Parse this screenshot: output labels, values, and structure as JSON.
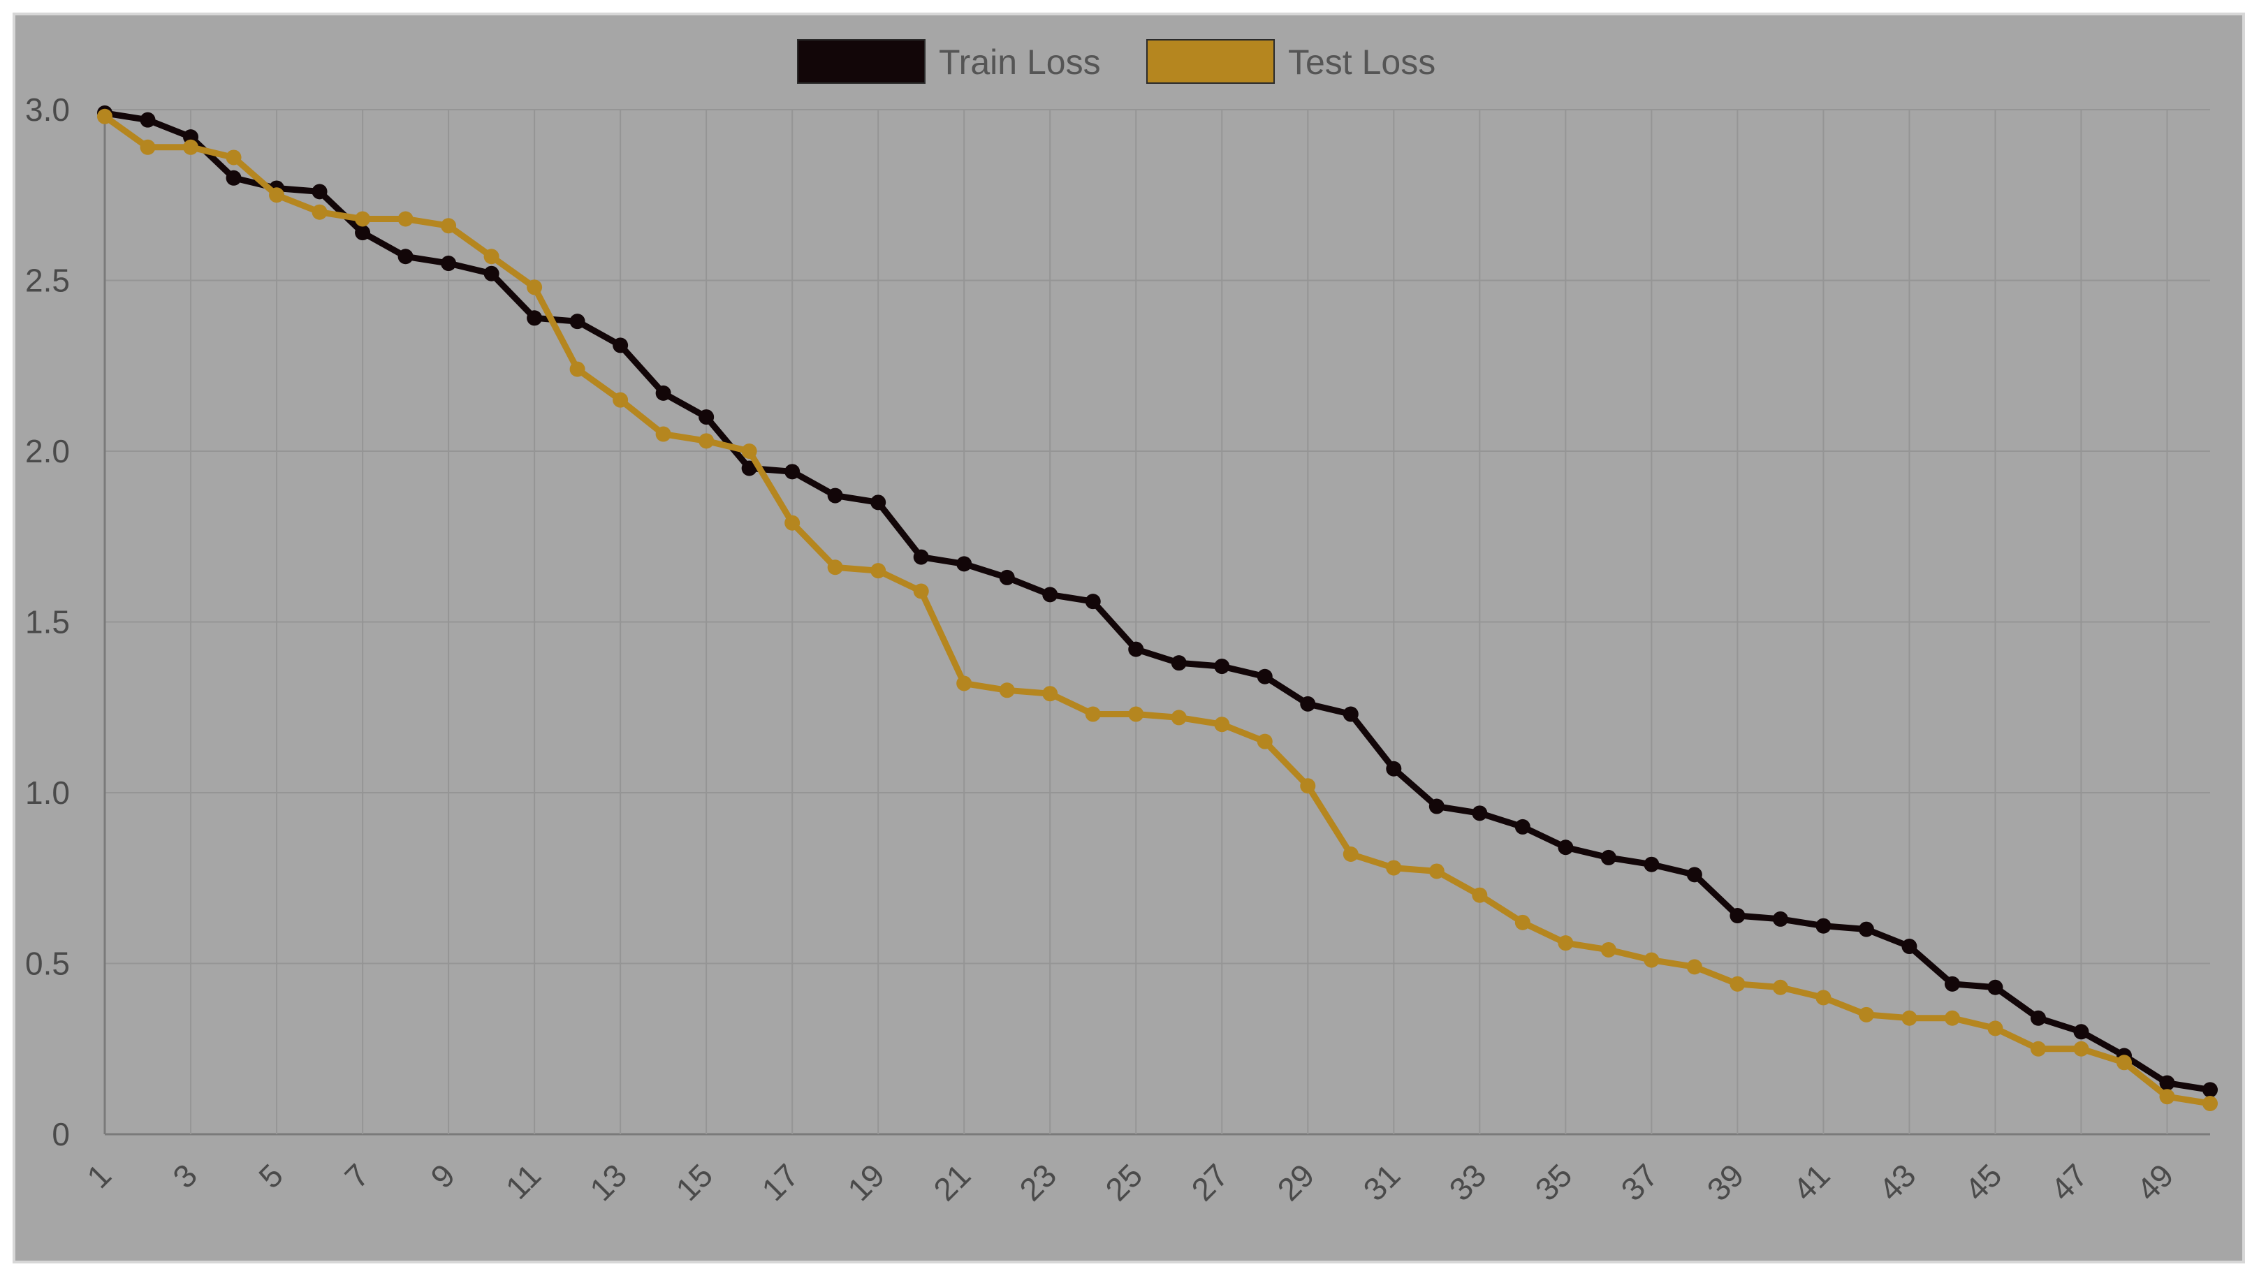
{
  "chart_data": {
    "type": "line",
    "title": "",
    "xlabel": "",
    "ylabel": "",
    "ylim": [
      0,
      3.0
    ],
    "y_ticks": [
      "0",
      "0.5",
      "1.0",
      "1.5",
      "2.0",
      "2.5",
      "3.0"
    ],
    "x": [
      1,
      2,
      3,
      4,
      5,
      6,
      7,
      8,
      9,
      10,
      11,
      12,
      13,
      14,
      15,
      16,
      17,
      18,
      19,
      20,
      21,
      22,
      23,
      24,
      25,
      26,
      27,
      28,
      29,
      30,
      31,
      32,
      33,
      34,
      35,
      36,
      37,
      38,
      39,
      40,
      41,
      42,
      43,
      44,
      45,
      46,
      47,
      48,
      49,
      50
    ],
    "x_tick_labels": [
      "1",
      "3",
      "5",
      "7",
      "9",
      "11",
      "13",
      "15",
      "17",
      "19",
      "21",
      "23",
      "25",
      "27",
      "29",
      "31",
      "33",
      "35",
      "37",
      "39",
      "41",
      "43",
      "45",
      "47",
      "49"
    ],
    "grid": true,
    "legend_position": "top-center",
    "series": [
      {
        "name": "Train Loss",
        "color": "#120608",
        "values": [
          2.99,
          2.97,
          2.92,
          2.8,
          2.77,
          2.76,
          2.64,
          2.57,
          2.55,
          2.52,
          2.39,
          2.38,
          2.31,
          2.17,
          2.1,
          1.95,
          1.94,
          1.87,
          1.85,
          1.69,
          1.67,
          1.63,
          1.58,
          1.56,
          1.42,
          1.38,
          1.37,
          1.34,
          1.26,
          1.23,
          1.07,
          0.96,
          0.94,
          0.9,
          0.84,
          0.81,
          0.79,
          0.76,
          0.64,
          0.63,
          0.61,
          0.6,
          0.55,
          0.44,
          0.43,
          0.34,
          0.3,
          0.23,
          0.15,
          0.13
        ]
      },
      {
        "name": "Test Loss",
        "color": "#b5861f",
        "values": [
          2.98,
          2.89,
          2.89,
          2.86,
          2.75,
          2.7,
          2.68,
          2.68,
          2.66,
          2.57,
          2.48,
          2.24,
          2.15,
          2.05,
          2.03,
          2.0,
          1.79,
          1.66,
          1.65,
          1.59,
          1.32,
          1.3,
          1.29,
          1.23,
          1.23,
          1.22,
          1.2,
          1.15,
          1.02,
          0.82,
          0.78,
          0.77,
          0.7,
          0.62,
          0.56,
          0.54,
          0.51,
          0.49,
          0.44,
          0.43,
          0.4,
          0.35,
          0.34,
          0.34,
          0.31,
          0.25,
          0.25,
          0.21,
          0.11,
          0.09
        ]
      }
    ]
  }
}
